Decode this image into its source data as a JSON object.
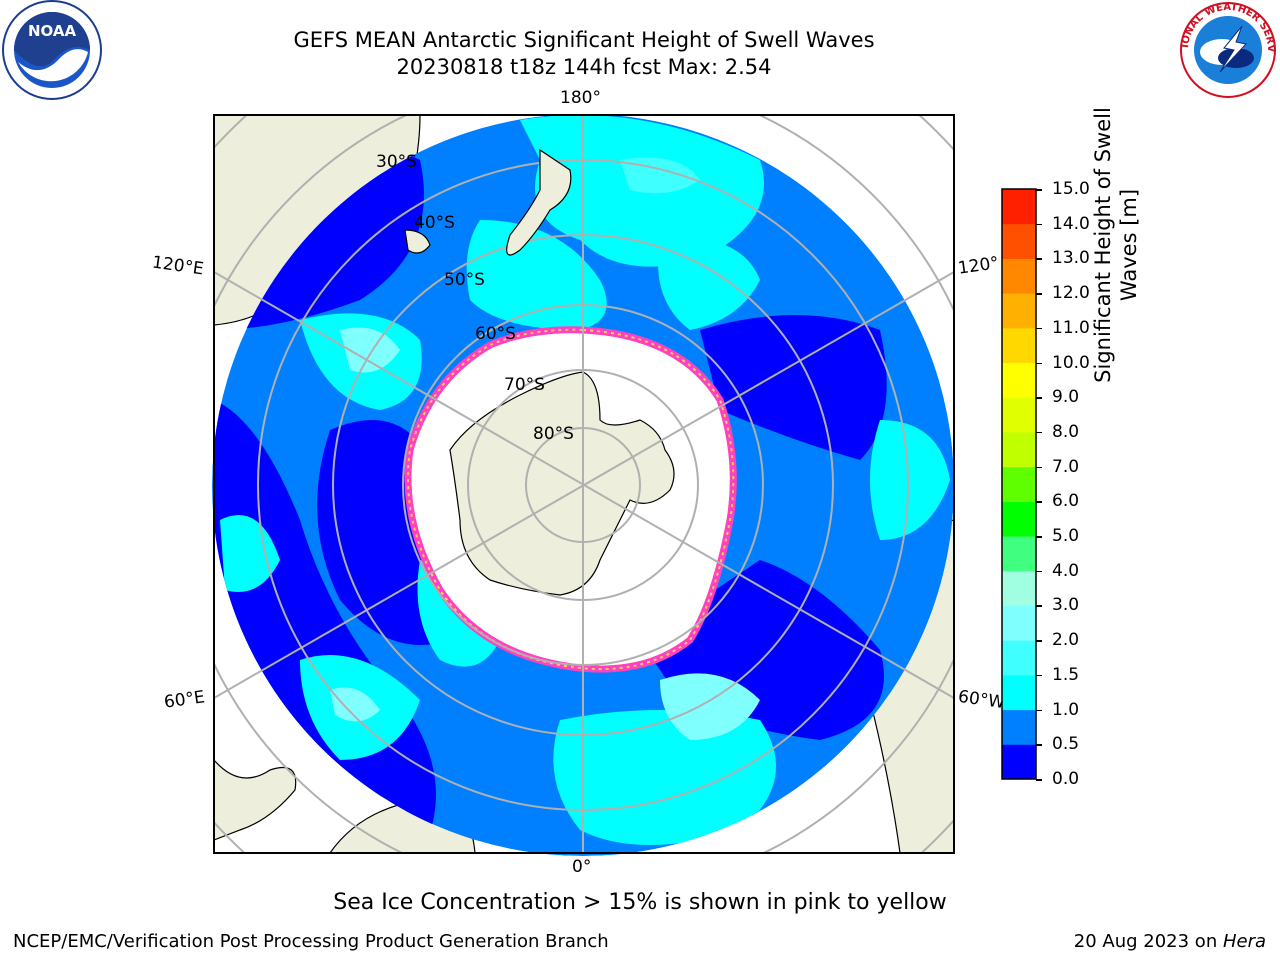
{
  "title_line1": "GEFS MEAN Antarctic Significant Height of Swell Waves",
  "title_line2": "20230818 t18z 144h fcst   Max: 2.54",
  "lon_labels": {
    "top": "180°",
    "bottom": "0°",
    "left_top": "120°E",
    "left_bottom": "60°E",
    "right_top": "120°",
    "right_bottom": "60°W"
  },
  "lat_labels": [
    "30°S",
    "40°S",
    "50°S",
    "60°S",
    "70°S",
    "80°S"
  ],
  "colorbar": {
    "label_line1": "Significant Height of Swell",
    "label_line2": "Waves [m]",
    "ticks": [
      "0.0",
      "0.5",
      "1.0",
      "1.5",
      "2.0",
      "3.0",
      "4.0",
      "5.0",
      "6.0",
      "7.0",
      "8.0",
      "9.0",
      "10.0",
      "11.0",
      "12.0",
      "13.0",
      "14.0",
      "15.0"
    ],
    "colors": [
      "#0000ff",
      "#0080ff",
      "#00ffff",
      "#40ffff",
      "#80ffff",
      "#a0ffe0",
      "#40ff80",
      "#00ff00",
      "#60ff00",
      "#c0ff00",
      "#e0ff00",
      "#ffff00",
      "#ffd800",
      "#ffb000",
      "#ff8800",
      "#ff5000",
      "#ff2000",
      "#ff0000"
    ]
  },
  "note": "Sea Ice Concentration > 15% is shown in pink to yellow",
  "footer_left": "NCEP/EMC/Verification Post Processing Product Generation Branch",
  "footer_right_prefix": "20 Aug 2023 on ",
  "footer_right_machine": "Hera",
  "logos": {
    "left": "NOAA",
    "right": "NATIONAL WEATHER SERVICE"
  }
}
